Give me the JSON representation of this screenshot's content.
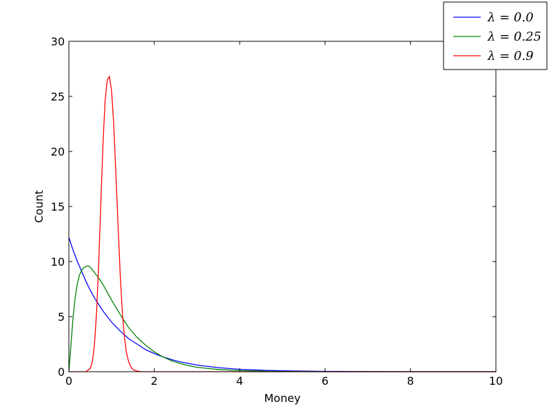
{
  "chart_data": {
    "type": "line",
    "xlabel": "Money",
    "ylabel": "Count",
    "xlim": [
      0,
      10
    ],
    "ylim": [
      0,
      30
    ],
    "xticks": [
      0,
      2,
      4,
      6,
      8,
      10
    ],
    "yticks": [
      0,
      5,
      10,
      15,
      20,
      25,
      30
    ],
    "grid": false,
    "legend_position": "top-right",
    "series": [
      {
        "name": "λ = 0.0",
        "color": "#0000ff",
        "x": [
          0,
          0.1,
          0.2,
          0.3,
          0.4,
          0.5,
          0.6,
          0.7,
          0.8,
          0.9,
          1.0,
          1.2,
          1.4,
          1.6,
          1.8,
          2.0,
          2.2,
          2.4,
          2.6,
          2.8,
          3.0,
          3.5,
          4.0,
          4.5,
          5.0,
          6.0,
          7.0,
          8.0,
          10.0
        ],
        "y": [
          12.2,
          11.0,
          10.0,
          9.1,
          8.2,
          7.4,
          6.7,
          6.1,
          5.5,
          5.0,
          4.5,
          3.7,
          3.0,
          2.5,
          2.0,
          1.65,
          1.35,
          1.1,
          0.9,
          0.75,
          0.6,
          0.37,
          0.22,
          0.14,
          0.08,
          0.03,
          0.01,
          0.0,
          0.0
        ]
      },
      {
        "name": "λ = 0.25",
        "color": "#008000",
        "x": [
          0,
          0.05,
          0.1,
          0.15,
          0.2,
          0.25,
          0.3,
          0.35,
          0.4,
          0.45,
          0.5,
          0.6,
          0.7,
          0.8,
          0.9,
          1.0,
          1.2,
          1.4,
          1.6,
          1.8,
          2.0,
          2.2,
          2.4,
          2.6,
          2.8,
          3.0,
          3.5,
          4.0,
          4.5,
          5.0,
          6.0,
          10.0
        ],
        "y": [
          0.0,
          2.5,
          5.0,
          6.8,
          8.0,
          8.8,
          9.2,
          9.45,
          9.55,
          9.6,
          9.5,
          9.0,
          8.5,
          7.9,
          7.2,
          6.5,
          5.2,
          4.0,
          3.1,
          2.4,
          1.8,
          1.35,
          1.0,
          0.75,
          0.55,
          0.4,
          0.2,
          0.1,
          0.05,
          0.02,
          0.0,
          0.0
        ]
      },
      {
        "name": "λ = 0.9",
        "color": "#ff0000",
        "x": [
          0,
          0.4,
          0.5,
          0.55,
          0.6,
          0.65,
          0.7,
          0.75,
          0.8,
          0.85,
          0.9,
          0.95,
          1.0,
          1.05,
          1.1,
          1.15,
          1.2,
          1.25,
          1.3,
          1.35,
          1.4,
          1.45,
          1.5,
          1.6,
          1.7,
          1.8,
          2.0,
          10.0
        ],
        "y": [
          0.0,
          0.0,
          0.3,
          0.9,
          2.5,
          5.5,
          10.0,
          15.5,
          20.8,
          24.7,
          26.5,
          26.8,
          25.5,
          22.5,
          18.0,
          13.5,
          9.0,
          5.5,
          3.2,
          1.7,
          0.9,
          0.45,
          0.2,
          0.05,
          0.0,
          0.0,
          0.0,
          0.0
        ]
      }
    ]
  }
}
